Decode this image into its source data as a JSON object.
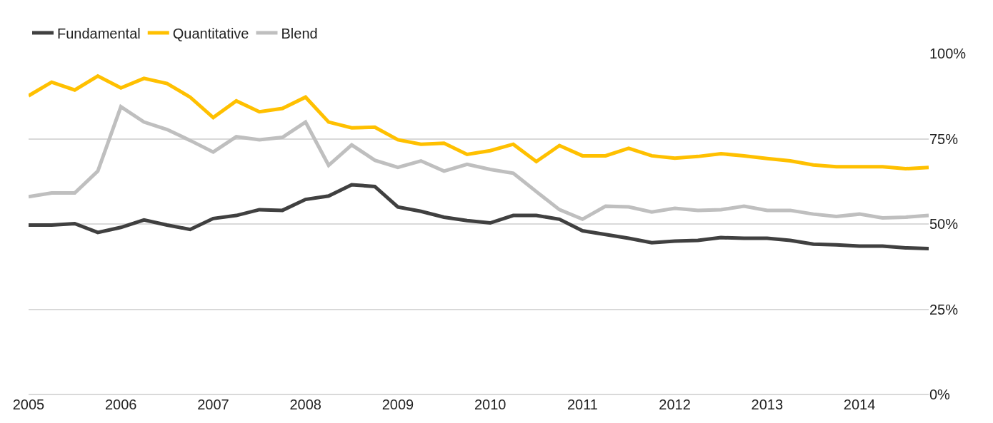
{
  "chart_data": {
    "type": "line",
    "x": [
      2005,
      2005.25,
      2005.5,
      2005.75,
      2006,
      2006.25,
      2006.5,
      2006.75,
      2007,
      2007.25,
      2007.5,
      2007.75,
      2008,
      2008.25,
      2008.5,
      2008.75,
      2009,
      2009.25,
      2009.5,
      2009.75,
      2010,
      2010.25,
      2010.5,
      2010.75,
      2011,
      2011.25,
      2011.5,
      2011.75,
      2012,
      2012.25,
      2012.5,
      2012.75,
      2013,
      2013.25,
      2013.5,
      2013.75,
      2014,
      2014.25,
      2014.5,
      2014.75
    ],
    "series": [
      {
        "name": "Fundamental",
        "color": "#404040",
        "values": [
          49.7,
          49.7,
          50.1,
          47.5,
          49.0,
          51.2,
          49.7,
          48.4,
          51.6,
          52.5,
          54.2,
          54.0,
          57.2,
          58.2,
          61.5,
          61.0,
          55.0,
          53.7,
          52.0,
          51.0,
          50.3,
          52.5,
          52.5,
          51.4,
          48.0,
          46.9,
          45.8,
          44.5,
          45.0,
          45.2,
          46.0,
          45.8,
          45.8,
          45.2,
          44.1,
          43.9,
          43.5,
          43.5,
          43.0,
          42.8
        ]
      },
      {
        "name": "Quantitative",
        "color": "#ffc000",
        "values": [
          87.6,
          91.6,
          89.3,
          93.4,
          89.9,
          92.7,
          91.2,
          87.2,
          81.2,
          86.1,
          82.9,
          83.9,
          87.2,
          79.9,
          78.2,
          78.4,
          74.7,
          73.4,
          73.7,
          70.4,
          71.5,
          73.4,
          68.3,
          73.0,
          70.0,
          70.0,
          72.2,
          70.0,
          69.3,
          69.8,
          70.6,
          70.0,
          69.2,
          68.5,
          67.3,
          66.8,
          66.8,
          66.8,
          66.2,
          66.6
        ]
      },
      {
        "name": "Blend",
        "color": "#bfbfbf",
        "values": [
          58.0,
          59.1,
          59.1,
          65.5,
          84.4,
          79.9,
          77.7,
          74.5,
          71.1,
          75.6,
          74.7,
          75.4,
          79.9,
          67.2,
          73.2,
          68.7,
          66.6,
          68.5,
          65.5,
          67.5,
          66.0,
          64.9,
          59.5,
          54.2,
          51.4,
          55.2,
          55.0,
          53.5,
          54.6,
          54.0,
          54.2,
          55.2,
          54.0,
          54.0,
          52.9,
          52.2,
          52.9,
          51.8,
          52.0,
          52.5
        ]
      }
    ],
    "xlim": [
      2005,
      2014.75
    ],
    "xticks": [
      2005,
      2006,
      2007,
      2008,
      2009,
      2010,
      2011,
      2012,
      2013,
      2014
    ],
    "ylim": [
      0,
      100
    ],
    "yticks": [
      {
        "value": 0,
        "label": "0%"
      },
      {
        "value": 25,
        "label": "25%"
      },
      {
        "value": 50,
        "label": "50%"
      },
      {
        "value": 75,
        "label": "75%"
      },
      {
        "value": 100,
        "label": "100%"
      }
    ],
    "grid": "y",
    "legend": "top left",
    "marker": "none",
    "line_style": "solid"
  }
}
